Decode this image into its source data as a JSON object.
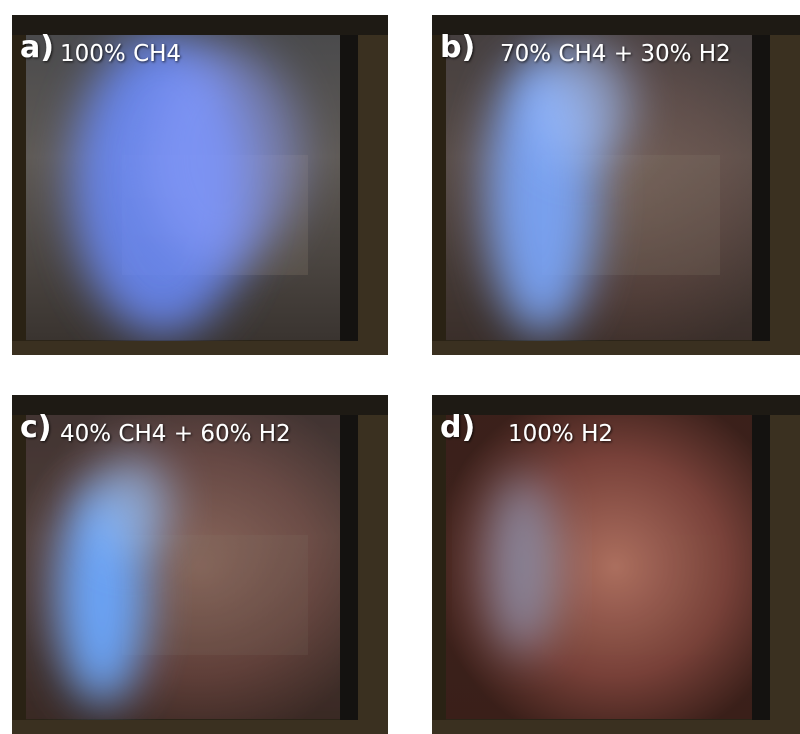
{
  "panels": [
    {
      "letter": "a)",
      "label": "100% CH4"
    },
    {
      "letter": "b)",
      "label": "70% CH4 + 30% H2"
    },
    {
      "letter": "c)",
      "label": "40% CH4 + 60% H2"
    },
    {
      "letter": "d)",
      "label": "100% H2"
    }
  ]
}
